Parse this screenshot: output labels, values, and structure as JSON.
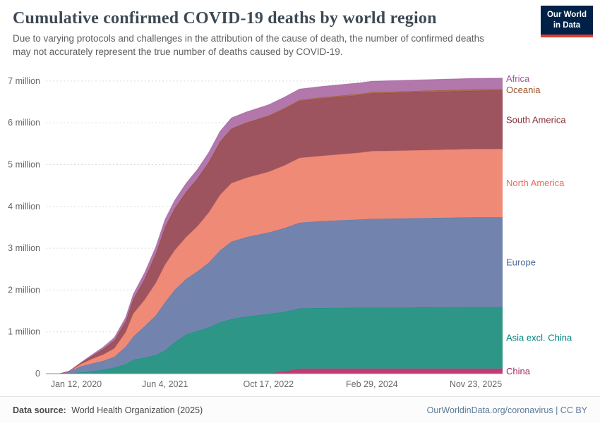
{
  "header": {
    "logo": {
      "line1": "Our World",
      "line2": "in Data",
      "bg": "#002147",
      "accent": "#dc3e32"
    }
  },
  "footer": {
    "source_label": "Data source:",
    "source_value": "World Health Organization (2025)",
    "credit": "OurWorldinData.org/coronavirus | CC BY"
  },
  "chart_data": {
    "type": "area",
    "stacked": true,
    "title": "Cumulative confirmed COVID-19 deaths by world region",
    "subtitle": "Due to varying protocols and challenges in the attribution of the cause of death, the number of confirmed deaths may not accurately represent the true number of deaths caused by COVID-19.",
    "unit": "deaths (millions)",
    "grid": "dashed-horizontal",
    "legend_position": "right",
    "xlim": [
      2020.03,
      2025.89
    ],
    "ylim": [
      0,
      7.2
    ],
    "yticks": {
      "values": [
        0,
        1,
        2,
        3,
        4,
        5,
        6,
        7
      ],
      "labels": [
        "0",
        "1 million",
        "2 million",
        "3 million",
        "4 million",
        "5 million",
        "6 million",
        "7 million"
      ]
    },
    "xticks": {
      "values": [
        2020.03,
        2021.42,
        2022.79,
        2024.16,
        2025.89
      ],
      "labels": [
        "Jan 12, 2020",
        "Jun 4, 2021",
        "Oct 17, 2022",
        "Feb 29, 2024",
        "Nov 23, 2025"
      ]
    },
    "x": [
      2020.03,
      2020.15,
      2020.3,
      2020.45,
      2020.6,
      2020.75,
      2020.9,
      2021.0,
      2021.15,
      2021.3,
      2021.42,
      2021.55,
      2021.7,
      2021.85,
      2022.0,
      2022.15,
      2022.3,
      2022.5,
      2022.79,
      2023.0,
      2023.2,
      2023.5,
      2024.0,
      2024.16,
      2024.5,
      2025.0,
      2025.5,
      2025.89
    ],
    "series": [
      {
        "id": "china",
        "name": "China",
        "color": "#c23c74",
        "label_color": "#a32c63",
        "values": [
          0,
          0.003,
          0.005,
          0.005,
          0.005,
          0.005,
          0.005,
          0.005,
          0.005,
          0.005,
          0.005,
          0.005,
          0.006,
          0.006,
          0.006,
          0.006,
          0.006,
          0.006,
          0.006,
          0.05,
          0.12,
          0.121,
          0.122,
          0.122,
          0.122,
          0.122,
          0.122,
          0.122
        ]
      },
      {
        "id": "asia-excl-china",
        "name": "Asia excl. China",
        "color": "#2d9687",
        "label_color": "#00847e",
        "values": [
          0,
          0.01,
          0.025,
          0.05,
          0.09,
          0.14,
          0.22,
          0.33,
          0.38,
          0.44,
          0.55,
          0.75,
          0.93,
          1.02,
          1.1,
          1.22,
          1.3,
          1.36,
          1.42,
          1.43,
          1.44,
          1.45,
          1.455,
          1.46,
          1.46,
          1.465,
          1.47,
          1.47
        ]
      },
      {
        "id": "europe",
        "name": "Europe",
        "color": "#7284ad",
        "label_color": "#4c6a9c",
        "values": [
          0,
          0.035,
          0.14,
          0.185,
          0.21,
          0.26,
          0.42,
          0.55,
          0.75,
          0.95,
          1.15,
          1.25,
          1.33,
          1.42,
          1.55,
          1.72,
          1.85,
          1.9,
          1.95,
          2.0,
          2.05,
          2.08,
          2.11,
          2.12,
          2.13,
          2.14,
          2.15,
          2.15
        ]
      },
      {
        "id": "north-america",
        "name": "North America",
        "color": "#ef8a77",
        "label_color": "#e56e5a",
        "values": [
          0,
          0.004,
          0.055,
          0.11,
          0.15,
          0.2,
          0.35,
          0.55,
          0.63,
          0.78,
          0.9,
          0.95,
          1.0,
          1.08,
          1.2,
          1.33,
          1.4,
          1.42,
          1.45,
          1.5,
          1.55,
          1.56,
          1.6,
          1.62,
          1.62,
          1.625,
          1.63,
          1.63
        ]
      },
      {
        "id": "south-america",
        "name": "South America",
        "color": "#9e545f",
        "label_color": "#883039",
        "values": [
          0,
          0.002,
          0.02,
          0.07,
          0.13,
          0.19,
          0.26,
          0.35,
          0.5,
          0.7,
          0.9,
          1.0,
          1.08,
          1.14,
          1.2,
          1.27,
          1.3,
          1.31,
          1.33,
          1.35,
          1.36,
          1.37,
          1.375,
          1.38,
          1.385,
          1.39,
          1.395,
          1.4
        ]
      },
      {
        "id": "oceania",
        "name": "Oceania",
        "color": "#a96a52",
        "label_color": "#9a5129",
        "values": [
          0,
          0.0005,
          0.001,
          0.001,
          0.001,
          0.001,
          0.001,
          0.001,
          0.001,
          0.001,
          0.0012,
          0.0015,
          0.002,
          0.0025,
          0.004,
          0.007,
          0.009,
          0.013,
          0.018,
          0.023,
          0.027,
          0.03,
          0.032,
          0.033,
          0.034,
          0.035,
          0.035,
          0.035
        ]
      },
      {
        "id": "africa",
        "name": "Africa",
        "color": "#b277ab",
        "label_color": "#a2559c",
        "values": [
          0,
          0.002,
          0.01,
          0.025,
          0.045,
          0.065,
          0.09,
          0.11,
          0.14,
          0.16,
          0.175,
          0.19,
          0.205,
          0.215,
          0.228,
          0.242,
          0.25,
          0.252,
          0.255,
          0.257,
          0.258,
          0.259,
          0.259,
          0.259,
          0.26,
          0.26,
          0.26,
          0.26
        ]
      }
    ]
  }
}
